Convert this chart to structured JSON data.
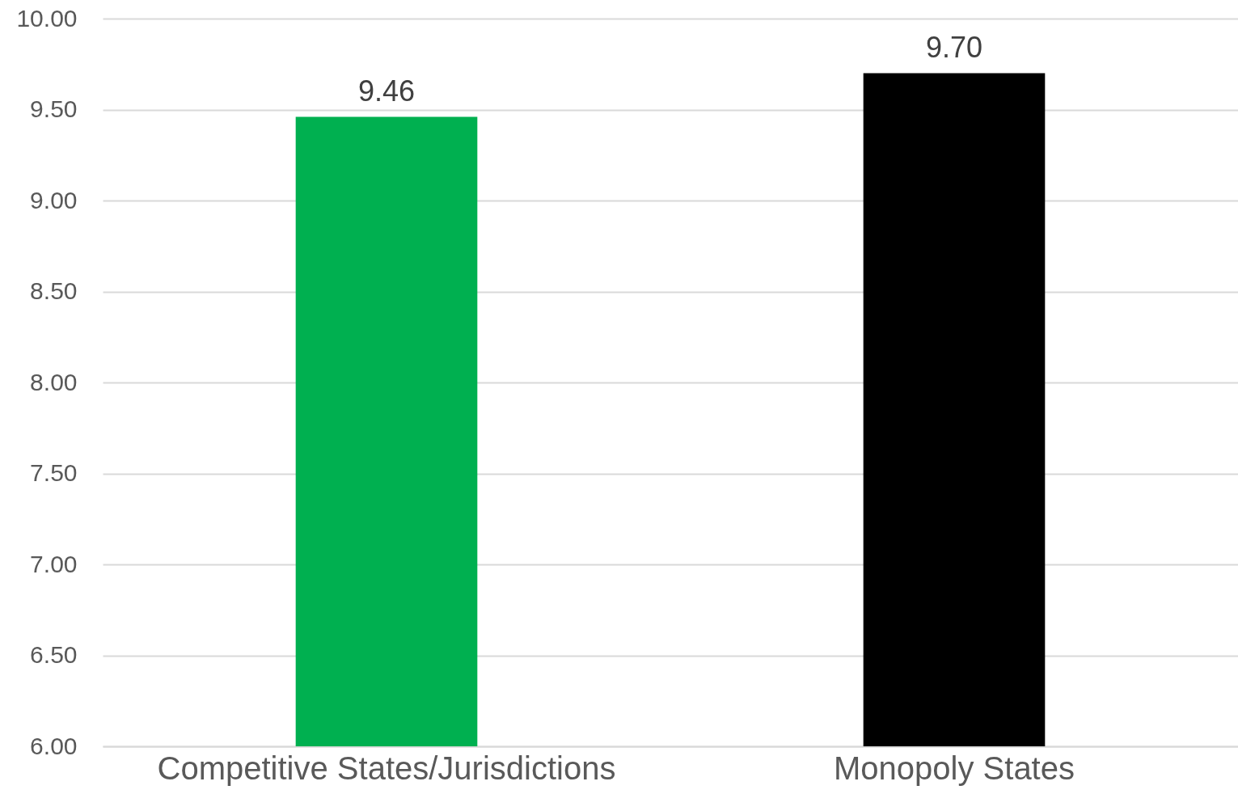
{
  "chart_data": {
    "type": "bar",
    "categories": [
      "Competitive States/Jurisdictions",
      "Monopoly States"
    ],
    "values": [
      9.46,
      9.7
    ],
    "colors": [
      "#00b050",
      "#000000"
    ],
    "value_labels": [
      "9.46",
      "9.70"
    ],
    "ylim": [
      6,
      10
    ],
    "yticks": [
      {
        "value": 6,
        "label": "6.00"
      },
      {
        "value": 6.5,
        "label": "6.50"
      },
      {
        "value": 7,
        "label": "7.00"
      },
      {
        "value": 7.5,
        "label": "7.50"
      },
      {
        "value": 8,
        "label": "8.00"
      },
      {
        "value": 8.5,
        "label": "8.50"
      },
      {
        "value": 9,
        "label": "9.00"
      },
      {
        "value": 9.5,
        "label": "9.50"
      },
      {
        "value": 10,
        "label": "10.00"
      }
    ],
    "grid": "y"
  }
}
